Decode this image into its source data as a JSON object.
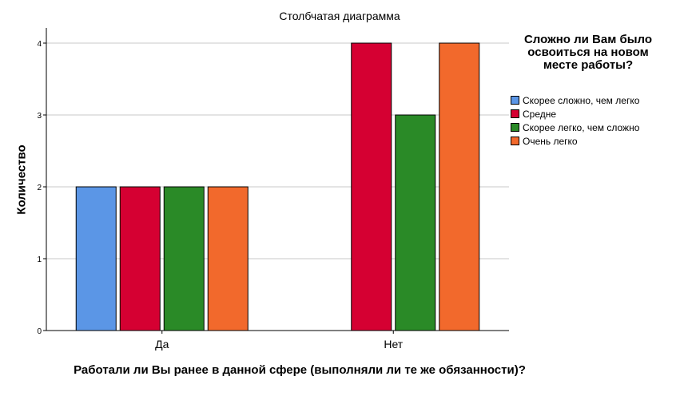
{
  "chart_data": {
    "type": "bar",
    "title": "Столбчатая диаграмма",
    "xlabel": "Работали ли Вы ранее в данной сфере (выполняли ли те же обязанности)?",
    "ylabel": "Количество",
    "categories": [
      "Да",
      "Нет"
    ],
    "ylim": [
      0,
      4
    ],
    "yticks": [
      "0",
      "1",
      "2",
      "3",
      "4"
    ],
    "grid": true,
    "legend_title": "Сложно ли Вам было освоиться на новом месте работы?",
    "legend_position": "right",
    "series": [
      {
        "name": "Скорее сложно, чем легко",
        "color": "#5b96e6",
        "values": [
          2,
          0
        ]
      },
      {
        "name": "Средне",
        "color": "#d50032",
        "values": [
          2,
          4
        ]
      },
      {
        "name": "Скорее легко, чем сложно",
        "color": "#2a8a27",
        "values": [
          2,
          3
        ]
      },
      {
        "name": "Очень легко",
        "color": "#f2692c",
        "values": [
          2,
          4
        ]
      }
    ]
  }
}
